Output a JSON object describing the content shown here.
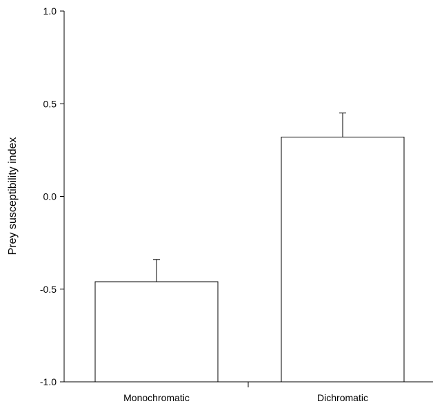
{
  "chart_data": {
    "type": "bar",
    "title": "",
    "xlabel": "",
    "ylabel": "Prey susceptibility index",
    "categories": [
      "Monochromatic",
      "Dichromatic"
    ],
    "values": [
      -0.46,
      0.32
    ],
    "error_plus": [
      0.12,
      0.13
    ],
    "error_style": "upper",
    "baseline": -1.0,
    "ylim": [
      -1.0,
      1.0
    ],
    "yticks": [
      -1.0,
      -0.5,
      0.0,
      0.5,
      1.0
    ],
    "ytick_labels": [
      "-1.0",
      "-0.5",
      "0.0",
      "0.5",
      "1.0"
    ],
    "bar_fill": "#ffffff",
    "bar_stroke": "#000000",
    "grid": false,
    "legend": "none"
  }
}
